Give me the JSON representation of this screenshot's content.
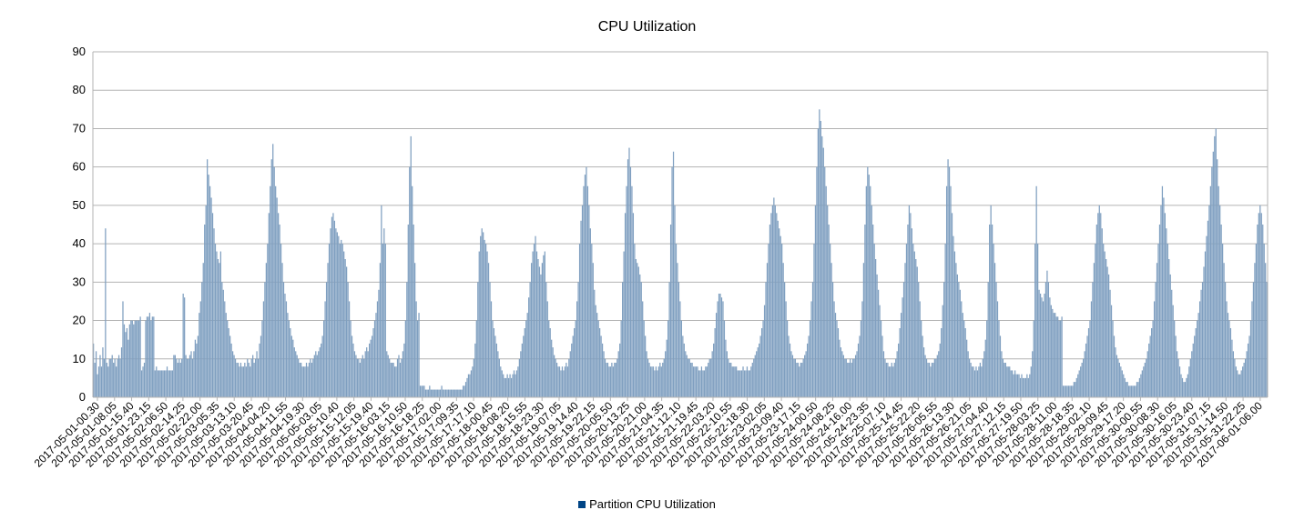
{
  "chart_data": {
    "type": "bar",
    "title": "CPU Utilization",
    "xlabel": "",
    "ylabel": "",
    "ylim": [
      0,
      90
    ],
    "y_ticks": [
      0,
      10,
      20,
      30,
      40,
      50,
      60,
      70,
      80,
      90
    ],
    "grid": "horizontal",
    "legend_position": "bottom",
    "color": "#7f9fc0",
    "legend_color": "#004586",
    "x_ticks": [
      "2017-05-01-00.30",
      "2017-05-01-08.05",
      "2017-05-01-15.40",
      "2017-05-01-23.15",
      "2017-05-02-06.50",
      "2017-05-02-14.25",
      "2017-05-02-22.00",
      "2017-05-03-05.35",
      "2017-05-03-13.10",
      "2017-05-03-20.45",
      "2017-05-04-04.20",
      "2017-05-04-11.55",
      "2017-05-04-19.30",
      "2017-05-05-03.05",
      "2017-05-05-10.40",
      "2017-05-15-12.05",
      "2017-05-15-19.40",
      "2017-05-16-03.15",
      "2017-05-16-10.50",
      "2017-05-16-18.25",
      "2017-05-17-02.00",
      "2017-05-17-09.35",
      "2017-05-17-17.10",
      "2017-05-18-00.45",
      "2017-05-18-08.20",
      "2017-05-18-15.55",
      "2017-05-18-23.30",
      "2017-05-19-07.05",
      "2017-05-19-14.40",
      "2017-05-19-22.15",
      "2017-05-20-05.50",
      "2017-05-20-13.25",
      "2017-05-20-21.00",
      "2017-05-21-04.35",
      "2017-05-21-12.10",
      "2017-05-21-19.45",
      "2017-05-22-03.20",
      "2017-05-22-10.55",
      "2017-05-22-18.30",
      "2017-05-23-02.05",
      "2017-05-23-09.40",
      "2017-05-23-17.15",
      "2017-05-24-00.50",
      "2017-05-24-08.25",
      "2017-05-24-16.00",
      "2017-05-24-23.35",
      "2017-05-25-07.10",
      "2017-05-25-14.45",
      "2017-05-25-22.20",
      "2017-05-26-05.55",
      "2017-05-26-13.30",
      "2017-05-26-21.05",
      "2017-05-27-04.40",
      "2017-05-27-12.15",
      "2017-05-27-19.50",
      "2017-05-28-03.25",
      "2017-05-28-11.00",
      "2017-05-28-18.35",
      "2017-05-29-02.10",
      "2017-05-29-09.45",
      "2017-05-29-17.20",
      "2017-05-30-00.55",
      "2017-05-30-08.30",
      "2017-05-30-16.05",
      "2017-05-30-23.40",
      "2017-05-31-07.15",
      "2017-05-31-14.50",
      "2017-05-31-22.25",
      "2017-06-01-06.00"
    ],
    "series": [
      {
        "name": "Partition CPU Utilization",
        "values": [
          14,
          9,
          12,
          6,
          8,
          11,
          8,
          13,
          10,
          44,
          9,
          8,
          10,
          10,
          11,
          9,
          10,
          8,
          10,
          11,
          10,
          13,
          25,
          19,
          17,
          18,
          15,
          19,
          20,
          20,
          19,
          20,
          20,
          20,
          20,
          21,
          7,
          8,
          9,
          20,
          21,
          21,
          22,
          20,
          21,
          21,
          7,
          8,
          7,
          7,
          7,
          7,
          7,
          7,
          7,
          8,
          7,
          7,
          7,
          7,
          11,
          11,
          10,
          9,
          10,
          9,
          10,
          27,
          26,
          11,
          10,
          10,
          11,
          12,
          10,
          12,
          15,
          14,
          16,
          22,
          25,
          30,
          35,
          45,
          50,
          62,
          58,
          55,
          52,
          48,
          44,
          40,
          38,
          36,
          35,
          38,
          30,
          28,
          25,
          22,
          20,
          18,
          16,
          14,
          12,
          11,
          10,
          9,
          9,
          8,
          9,
          8,
          8,
          9,
          8,
          10,
          9,
          8,
          10,
          11,
          9,
          10,
          12,
          10,
          14,
          16,
          20,
          25,
          30,
          35,
          40,
          48,
          55,
          62,
          66,
          60,
          55,
          52,
          48,
          45,
          40,
          35,
          30,
          27,
          25,
          22,
          20,
          18,
          16,
          15,
          13,
          12,
          11,
          10,
          9,
          9,
          8,
          8,
          8,
          9,
          8,
          9,
          10,
          9,
          10,
          11,
          12,
          11,
          12,
          13,
          14,
          16,
          20,
          25,
          30,
          35,
          40,
          44,
          47,
          48,
          46,
          44,
          43,
          42,
          40,
          41,
          40,
          38,
          36,
          34,
          30,
          25,
          20,
          16,
          14,
          12,
          11,
          10,
          10,
          9,
          10,
          11,
          10,
          12,
          13,
          12,
          14,
          15,
          16,
          18,
          20,
          22,
          25,
          28,
          35,
          50,
          40,
          44,
          40,
          12,
          11,
          10,
          9,
          9,
          9,
          8,
          8,
          10,
          11,
          9,
          10,
          12,
          14,
          20,
          30,
          45,
          60,
          68,
          55,
          45,
          35,
          25,
          20,
          22,
          3,
          3,
          3,
          3,
          2,
          2,
          2,
          3,
          2,
          2,
          2,
          2,
          2,
          2,
          2,
          2,
          3,
          2,
          2,
          2,
          2,
          2,
          2,
          2,
          2,
          2,
          2,
          2,
          2,
          2,
          2,
          2,
          3,
          3,
          4,
          5,
          6,
          6,
          7,
          8,
          10,
          14,
          20,
          30,
          38,
          42,
          44,
          43,
          41,
          40,
          38,
          35,
          30,
          25,
          20,
          18,
          16,
          14,
          12,
          10,
          8,
          7,
          6,
          5,
          5,
          6,
          5,
          6,
          5,
          6,
          7,
          6,
          7,
          8,
          10,
          12,
          14,
          16,
          18,
          20,
          22,
          26,
          30,
          35,
          38,
          40,
          42,
          38,
          36,
          34,
          32,
          35,
          37,
          38,
          30,
          25,
          20,
          18,
          15,
          13,
          11,
          10,
          9,
          8,
          8,
          7,
          8,
          7,
          8,
          9,
          8,
          10,
          12,
          14,
          16,
          18,
          20,
          25,
          30,
          40,
          46,
          50,
          55,
          58,
          60,
          55,
          50,
          44,
          40,
          35,
          28,
          24,
          22,
          20,
          18,
          16,
          14,
          12,
          10,
          9,
          9,
          8,
          8,
          9,
          8,
          9,
          9,
          10,
          12,
          14,
          20,
          30,
          38,
          48,
          55,
          62,
          65,
          60,
          55,
          48,
          40,
          36,
          35,
          34,
          32,
          30,
          25,
          20,
          16,
          12,
          10,
          9,
          8,
          8,
          8,
          7,
          8,
          7,
          8,
          9,
          8,
          9,
          10,
          12,
          15,
          20,
          30,
          45,
          60,
          64,
          50,
          40,
          35,
          30,
          25,
          20,
          16,
          14,
          12,
          11,
          10,
          10,
          9,
          9,
          8,
          8,
          8,
          8,
          7,
          7,
          8,
          7,
          7,
          8,
          8,
          9,
          10,
          10,
          12,
          14,
          18,
          22,
          25,
          27,
          27,
          26,
          25,
          20,
          15,
          12,
          10,
          9,
          9,
          8,
          8,
          8,
          8,
          7,
          7,
          7,
          7,
          8,
          7,
          7,
          8,
          7,
          7,
          8,
          9,
          10,
          11,
          12,
          13,
          14,
          16,
          18,
          20,
          24,
          30,
          35,
          40,
          45,
          48,
          50,
          52,
          50,
          48,
          46,
          44,
          42,
          40,
          35,
          30,
          25,
          20,
          16,
          14,
          12,
          11,
          10,
          10,
          9,
          9,
          8,
          9,
          9,
          10,
          11,
          12,
          14,
          16,
          20,
          25,
          30,
          40,
          50,
          60,
          70,
          75,
          72,
          68,
          65,
          60,
          55,
          50,
          45,
          40,
          35,
          30,
          25,
          22,
          20,
          18,
          15,
          13,
          12,
          11,
          10,
          10,
          9,
          9,
          10,
          9,
          10,
          10,
          11,
          12,
          14,
          16,
          20,
          25,
          35,
          45,
          55,
          60,
          58,
          55,
          50,
          45,
          40,
          36,
          32,
          28,
          24,
          20,
          16,
          12,
          10,
          9,
          9,
          8,
          8,
          9,
          8,
          9,
          10,
          12,
          14,
          18,
          22,
          26,
          30,
          35,
          40,
          45,
          50,
          48,
          44,
          40,
          38,
          36,
          34,
          30,
          25,
          20,
          16,
          13,
          11,
          10,
          9,
          9,
          8,
          9,
          9,
          10,
          10,
          11,
          12,
          14,
          18,
          24,
          30,
          40,
          55,
          62,
          60,
          55,
          48,
          42,
          38,
          35,
          32,
          30,
          28,
          25,
          22,
          20,
          18,
          15,
          12,
          10,
          9,
          8,
          8,
          7,
          8,
          7,
          8,
          9,
          8,
          10,
          12,
          15,
          20,
          30,
          45,
          50,
          45,
          40,
          35,
          30,
          25,
          20,
          16,
          12,
          10,
          9,
          9,
          8,
          8,
          8,
          7,
          7,
          6,
          7,
          6,
          6,
          6,
          5,
          6,
          5,
          5,
          5,
          6,
          5,
          6,
          8,
          12,
          20,
          40,
          55,
          40,
          28,
          27,
          26,
          25,
          27,
          30,
          33,
          30,
          26,
          24,
          23,
          22,
          22,
          21,
          21,
          20,
          20,
          21,
          3,
          3,
          3,
          3,
          3,
          3,
          3,
          3,
          4,
          4,
          5,
          6,
          7,
          8,
          9,
          10,
          12,
          14,
          16,
          18,
          20,
          25,
          30,
          35,
          40,
          45,
          48,
          50,
          48,
          44,
          40,
          38,
          36,
          34,
          32,
          28,
          24,
          20,
          16,
          13,
          11,
          10,
          9,
          8,
          7,
          6,
          5,
          4,
          4,
          3,
          3,
          3,
          3,
          3,
          3,
          4,
          4,
          5,
          6,
          7,
          8,
          9,
          10,
          12,
          14,
          16,
          18,
          20,
          25,
          30,
          35,
          40,
          45,
          50,
          55,
          52,
          48,
          44,
          40,
          36,
          32,
          28,
          24,
          20,
          16,
          12,
          10,
          8,
          6,
          5,
          4,
          4,
          5,
          6,
          8,
          10,
          12,
          14,
          16,
          18,
          20,
          22,
          25,
          28,
          30,
          34,
          38,
          42,
          46,
          50,
          55,
          60,
          64,
          68,
          70,
          62,
          55,
          50,
          45,
          40,
          35,
          30,
          25,
          22,
          20,
          18,
          15,
          12,
          10,
          8,
          7,
          6,
          6,
          7,
          8,
          9,
          10,
          12,
          14,
          16,
          20,
          25,
          30,
          35,
          40,
          45,
          48,
          50,
          48,
          45,
          40,
          35,
          30
        ]
      }
    ]
  }
}
